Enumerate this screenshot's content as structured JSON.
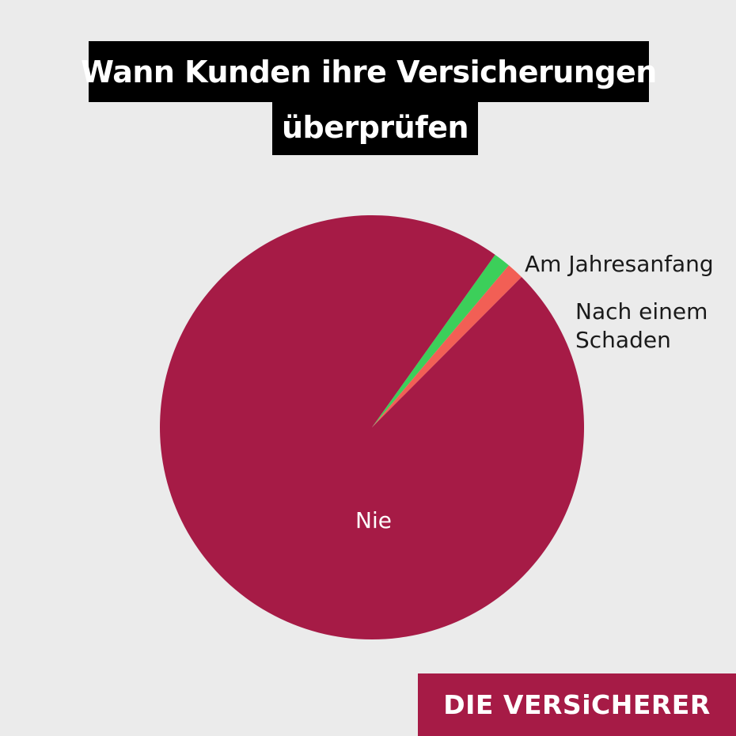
{
  "header": {
    "title_line1": "Wann Kunden ihre Versicherungen",
    "title_line2": "überprüfen"
  },
  "brand": {
    "label": "DIE VERSiCHERER"
  },
  "colors": {
    "background": "#ebebeb",
    "title_bg": "#000000",
    "brand_bg": "#a61b46"
  },
  "chart_data": {
    "type": "pie",
    "title": "Wann Kunden ihre Versicherungen überprüfen",
    "slices": [
      {
        "label": "Am Jahresanfang",
        "value": 1.3,
        "color": "#3ccf5a",
        "label_lines": [
          "Am Jahresanfang"
        ]
      },
      {
        "label": "Nach einem Schaden",
        "value": 1.3,
        "color": "#f25f55",
        "label_lines": [
          "Nach einem",
          "Schaden"
        ]
      },
      {
        "label": "Nie",
        "value": 97.4,
        "color": "#a61b46",
        "label_lines": [
          "Nie"
        ]
      }
    ],
    "start_angle_deg": 54.5,
    "legend": "none"
  }
}
